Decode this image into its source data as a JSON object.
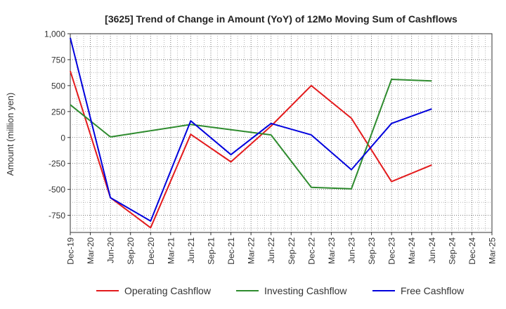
{
  "chart_data": {
    "type": "line",
    "title": "[3625]  Trend of Change in Amount (YoY) of 12Mo Moving Sum of Cashflows",
    "xlabel": "",
    "ylabel": "Amount (million yen)",
    "categories": [
      "Dec-19",
      "Mar-20",
      "Jun-20",
      "Sep-20",
      "Dec-20",
      "Mar-21",
      "Jun-21",
      "Sep-21",
      "Dec-21",
      "Mar-22",
      "Jun-22",
      "Sep-22",
      "Dec-22",
      "Mar-23",
      "Jun-23",
      "Sep-23",
      "Dec-23",
      "Mar-24",
      "Jun-24",
      "Sep-24",
      "Dec-24",
      "Mar-25"
    ],
    "y_ticks": [
      1000,
      750,
      500,
      250,
      0,
      -250,
      -500,
      -750
    ],
    "y_tick_labels": [
      "1,000",
      "750",
      "500",
      "250",
      "0",
      "-250",
      "-500",
      "-750"
    ],
    "ylim": [
      -915,
      1000
    ],
    "grid": true,
    "legend_position": "bottom",
    "series": [
      {
        "name": "Operating Cashflow",
        "color": "#e31a1c",
        "points": [
          [
            0,
            640
          ],
          [
            2,
            -580
          ],
          [
            4,
            -870
          ],
          [
            6,
            30
          ],
          [
            8,
            -235
          ],
          [
            10,
            110
          ],
          [
            12,
            500
          ],
          [
            14,
            185
          ],
          [
            16,
            -425
          ],
          [
            18,
            -265
          ]
        ]
      },
      {
        "name": "Investing Cashflow",
        "color": "#2e8b2e",
        "points": [
          [
            0,
            315
          ],
          [
            2,
            5
          ],
          [
            6,
            125
          ],
          [
            10,
            25
          ],
          [
            12,
            -480
          ],
          [
            14,
            -495
          ],
          [
            16,
            560
          ],
          [
            18,
            545
          ]
        ]
      },
      {
        "name": "Free Cashflow",
        "color": "#0000dd",
        "points": [
          [
            0,
            960
          ],
          [
            2,
            -580
          ],
          [
            4,
            -805
          ],
          [
            6,
            160
          ],
          [
            8,
            -165
          ],
          [
            10,
            135
          ],
          [
            12,
            25
          ],
          [
            14,
            -310
          ],
          [
            16,
            135
          ],
          [
            18,
            275
          ]
        ]
      }
    ]
  }
}
